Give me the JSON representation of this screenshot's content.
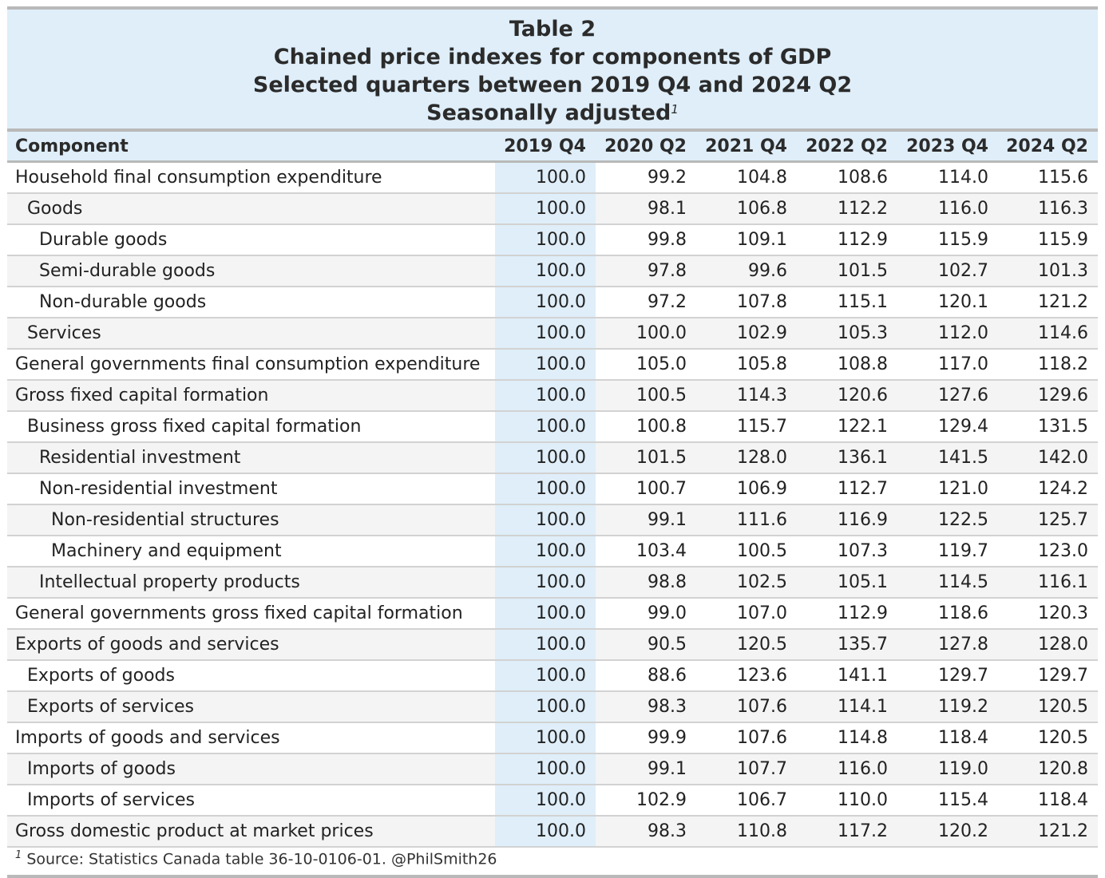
{
  "title": {
    "line1": "Table 2",
    "line2": "Chained price indexes for components of GDP",
    "line3": "Selected quarters between 2019 Q4 and 2024 Q2",
    "line4": "Seasonally adjusted",
    "footnote_mark": "1"
  },
  "footer": {
    "mark": "1",
    "text": "Source: Statistics Canada table 36-10-0106-01. @PhilSmith26"
  },
  "chart_data": {
    "type": "table",
    "columns": [
      "Component",
      "2019 Q4",
      "2020 Q2",
      "2021 Q4",
      "2022 Q2",
      "2023 Q4",
      "2024 Q2"
    ],
    "rows": [
      {
        "label": "Household final consumption expenditure",
        "indent": 0,
        "values": [
          "100.0",
          "99.2",
          "104.8",
          "108.6",
          "114.0",
          "115.6"
        ]
      },
      {
        "label": "Goods",
        "indent": 1,
        "values": [
          "100.0",
          "98.1",
          "106.8",
          "112.2",
          "116.0",
          "116.3"
        ]
      },
      {
        "label": "Durable goods",
        "indent": 2,
        "values": [
          "100.0",
          "99.8",
          "109.1",
          "112.9",
          "115.9",
          "115.9"
        ]
      },
      {
        "label": "Semi-durable goods",
        "indent": 2,
        "values": [
          "100.0",
          "97.8",
          "99.6",
          "101.5",
          "102.7",
          "101.3"
        ]
      },
      {
        "label": "Non-durable goods",
        "indent": 2,
        "values": [
          "100.0",
          "97.2",
          "107.8",
          "115.1",
          "120.1",
          "121.2"
        ]
      },
      {
        "label": "Services",
        "indent": 1,
        "values": [
          "100.0",
          "100.0",
          "102.9",
          "105.3",
          "112.0",
          "114.6"
        ]
      },
      {
        "label": "General governments final consumption expenditure",
        "indent": 0,
        "values": [
          "100.0",
          "105.0",
          "105.8",
          "108.8",
          "117.0",
          "118.2"
        ]
      },
      {
        "label": "Gross fixed capital formation",
        "indent": 0,
        "values": [
          "100.0",
          "100.5",
          "114.3",
          "120.6",
          "127.6",
          "129.6"
        ]
      },
      {
        "label": "Business gross fixed capital formation",
        "indent": 1,
        "values": [
          "100.0",
          "100.8",
          "115.7",
          "122.1",
          "129.4",
          "131.5"
        ]
      },
      {
        "label": "Residential investment",
        "indent": 2,
        "values": [
          "100.0",
          "101.5",
          "128.0",
          "136.1",
          "141.5",
          "142.0"
        ]
      },
      {
        "label": "Non-residential investment",
        "indent": 2,
        "values": [
          "100.0",
          "100.7",
          "106.9",
          "112.7",
          "121.0",
          "124.2"
        ]
      },
      {
        "label": "Non-residential structures",
        "indent": 3,
        "values": [
          "100.0",
          "99.1",
          "111.6",
          "116.9",
          "122.5",
          "125.7"
        ]
      },
      {
        "label": "Machinery and equipment",
        "indent": 3,
        "values": [
          "100.0",
          "103.4",
          "100.5",
          "107.3",
          "119.7",
          "123.0"
        ]
      },
      {
        "label": "Intellectual property products",
        "indent": 2,
        "values": [
          "100.0",
          "98.8",
          "102.5",
          "105.1",
          "114.5",
          "116.1"
        ]
      },
      {
        "label": "General governments gross fixed capital formation",
        "indent": 0,
        "values": [
          "100.0",
          "99.0",
          "107.0",
          "112.9",
          "118.6",
          "120.3"
        ]
      },
      {
        "label": "Exports of goods and services",
        "indent": 0,
        "values": [
          "100.0",
          "90.5",
          "120.5",
          "135.7",
          "127.8",
          "128.0"
        ]
      },
      {
        "label": "Exports of goods",
        "indent": 1,
        "values": [
          "100.0",
          "88.6",
          "123.6",
          "141.1",
          "129.7",
          "129.7"
        ]
      },
      {
        "label": "Exports of services",
        "indent": 1,
        "values": [
          "100.0",
          "98.3",
          "107.6",
          "114.1",
          "119.2",
          "120.5"
        ]
      },
      {
        "label": "Imports of goods and services",
        "indent": 0,
        "values": [
          "100.0",
          "99.9",
          "107.6",
          "114.8",
          "118.4",
          "120.5"
        ]
      },
      {
        "label": "Imports of goods",
        "indent": 1,
        "values": [
          "100.0",
          "99.1",
          "107.7",
          "116.0",
          "119.0",
          "120.8"
        ]
      },
      {
        "label": "Imports of services",
        "indent": 1,
        "values": [
          "100.0",
          "102.9",
          "106.7",
          "110.0",
          "115.4",
          "118.4"
        ]
      },
      {
        "label": "Gross domestic product at market prices",
        "indent": 0,
        "values": [
          "100.0",
          "98.3",
          "110.8",
          "117.2",
          "120.2",
          "121.2"
        ]
      }
    ]
  }
}
